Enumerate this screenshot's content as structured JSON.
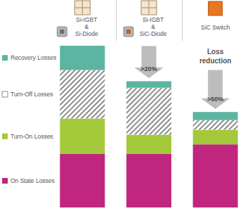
{
  "chart_data": {
    "type": "bar",
    "stacked": true,
    "grid": false,
    "tick_labels": false,
    "categories": [
      "Si-IGBT\n&\nSi-Diode",
      "Si-IGBT\n&\nSiC-Diode",
      "SiC Switch"
    ],
    "ylim": [
      0,
      100
    ],
    "series": [
      {
        "name": "On State Losses",
        "color": "#c0267e",
        "values": [
          33,
          33,
          39
        ]
      },
      {
        "name": "Turn-On Losses",
        "color": "#a3c93a",
        "values": [
          22,
          12,
          9
        ]
      },
      {
        "name": "Turn-Off Losses",
        "color": "#8c8c8c",
        "marker": "hatch",
        "values": [
          30,
          29,
          6
        ]
      },
      {
        "name": "Recovery Losses",
        "color": "#5bb5a2",
        "values": [
          15,
          4,
          5
        ]
      }
    ],
    "annotations": [
      {
        "text": ">20%",
        "category": "Si-IGBT\n&\nSiC-Diode"
      },
      {
        "text": ">50%",
        "category": "SiC Switch"
      },
      {
        "text": "Loss\nreduction",
        "category": "SiC Switch"
      }
    ]
  }
}
